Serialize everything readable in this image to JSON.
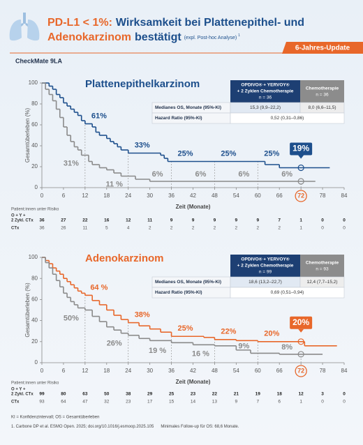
{
  "header": {
    "title_1a": "PD-L1 < 1%:",
    "title_1b": "Wirksamkeit bei Plattenepithel- und",
    "title_2a": "Adenokarzinom",
    "title_2b": "bestätigt",
    "note": "(expl. Post-hoc Analyse)",
    "note_ref": "1",
    "badge": "6-Jahres-Update",
    "study": "CheckMate 9LA"
  },
  "footer": {
    "abbreviations": "KI = Konfidenzintervall; OS = Gesamtüberleben",
    "reference": "1. Carbone DP et al. ESMO Open. 2025; doi.org/10.1016/j.esmoop.2025.105",
    "follow_up": "Minimales Follow-up für OS: 68,6 Monate."
  },
  "chart_data": [
    {
      "type": "step",
      "title": "Plattenepithelkarzinom",
      "title_color": "#1d4f8c",
      "ylabel": "Gesamtüberleben (%)",
      "xlabel": "Zeit (Monate)",
      "xlim": [
        0,
        84
      ],
      "ylim": [
        0,
        100
      ],
      "xticks": [
        0,
        6,
        12,
        18,
        24,
        30,
        36,
        42,
        48,
        54,
        60,
        66,
        72,
        78,
        84
      ],
      "yticks": [
        0,
        20,
        40,
        60,
        80,
        100
      ],
      "highlight_x": 72,
      "series": [
        {
          "color": "#1d4f8c",
          "label_side": "right",
          "x": [
            0,
            2,
            3,
            4,
            5,
            6,
            7,
            8,
            9,
            10,
            11,
            12,
            14,
            15,
            16,
            18,
            19,
            20,
            21,
            22,
            24,
            33,
            34,
            35,
            62,
            66,
            80
          ],
          "values": [
            100,
            97,
            94,
            89,
            86,
            81,
            78,
            75,
            72,
            69,
            64,
            61,
            58,
            53,
            50,
            47,
            44,
            42,
            39,
            36,
            33,
            31,
            28,
            25,
            22,
            19,
            19
          ],
          "labels": [
            {
              "x": 12,
              "value": 61,
              "label": "61%"
            },
            {
              "x": 24,
              "value": 33,
              "label": "33%"
            },
            {
              "x": 36,
              "value": 25,
              "label": "25%"
            },
            {
              "x": 48,
              "value": 25,
              "label": "25%"
            },
            {
              "x": 60,
              "value": 25,
              "label": "25%"
            }
          ],
          "highlight": {
            "x": 72,
            "value": 19,
            "label": "19%"
          }
        },
        {
          "color": "#8a8a8a",
          "label_side": "left",
          "x": [
            0,
            1,
            2,
            3,
            4,
            5,
            6,
            7,
            8,
            9,
            10,
            11,
            13,
            14,
            16,
            18,
            20,
            22,
            26,
            30,
            76
          ],
          "values": [
            100,
            94,
            89,
            83,
            75,
            67,
            58,
            50,
            44,
            39,
            36,
            31,
            25,
            22,
            19,
            17,
            14,
            11,
            8,
            6,
            6
          ],
          "labels": [
            {
              "x": 12,
              "value": 31,
              "label": "31%"
            },
            {
              "x": 24,
              "value": 11,
              "label": "11 %"
            },
            {
              "x": 36,
              "value": 6,
              "label": "6%"
            },
            {
              "x": 48,
              "value": 6,
              "label": "6%"
            },
            {
              "x": 60,
              "value": 6,
              "label": "6%"
            },
            {
              "x": 72,
              "value": 6,
              "label": "6%"
            }
          ],
          "highlight": {
            "x": 72,
            "value": 6
          }
        }
      ],
      "stats": {
        "headers": [
          [
            "OPDIVO® + YERVOY®",
            "+ 2 Zyklen Chemotherapie",
            "n = 36"
          ],
          [
            "Chemotherapie",
            "n = 36"
          ]
        ],
        "rows": [
          [
            "Medianes OS, Monate (95%-KI)",
            "15,3 (9,9–22,2)",
            "8,0 (6,6–11,5)"
          ],
          [
            "Hazard Ratio (95%-KI)",
            "0,52 (0,31–0,86)"
          ]
        ]
      },
      "at_risk": {
        "title": "Patient:innen unter Risiko",
        "rows": [
          {
            "label": [
              "O + Y +",
              "2 Zykl. CTx"
            ],
            "counts": [
              36,
              27,
              22,
              16,
              12,
              11,
              9,
              9,
              9,
              9,
              9,
              7,
              1,
              0,
              0
            ]
          },
          {
            "label": [
              "CTx"
            ],
            "counts": [
              36,
              26,
              11,
              5,
              4,
              2,
              2,
              2,
              2,
              2,
              2,
              2,
              1,
              0,
              0
            ]
          }
        ]
      }
    },
    {
      "type": "step",
      "title": "Adenokarzinom",
      "title_color": "#e8672a",
      "ylabel": "Gesamtüberleben (%)",
      "xlabel": "Zeit (Monate)",
      "xlim": [
        0,
        84
      ],
      "ylim": [
        0,
        100
      ],
      "xticks": [
        0,
        6,
        12,
        18,
        24,
        30,
        36,
        42,
        48,
        54,
        60,
        66,
        72,
        78,
        84
      ],
      "yticks": [
        0,
        20,
        40,
        60,
        80,
        100
      ],
      "highlight_x": 72,
      "series": [
        {
          "color": "#e8672a",
          "label_side": "right",
          "x": [
            0,
            1,
            2,
            3,
            4,
            5,
            6,
            7,
            8,
            9,
            10,
            11,
            12,
            14,
            16,
            18,
            20,
            22,
            24,
            27,
            30,
            33,
            36,
            45,
            48,
            54,
            60,
            73,
            82
          ],
          "values": [
            100,
            97,
            94,
            90,
            87,
            84,
            80,
            77,
            74,
            71,
            68,
            66,
            64,
            59,
            55,
            50,
            45,
            41,
            38,
            35,
            32,
            29,
            25,
            24,
            22,
            21,
            20,
            16,
            16
          ],
          "labels": [
            {
              "x": 12,
              "value": 64,
              "label": "64 %"
            },
            {
              "x": 24,
              "value": 38,
              "label": "38%"
            },
            {
              "x": 36,
              "value": 25,
              "label": "25%"
            },
            {
              "x": 48,
              "value": 22,
              "label": "22%"
            },
            {
              "x": 60,
              "value": 20,
              "label": "20%"
            }
          ],
          "highlight": {
            "x": 72,
            "value": 20,
            "label": "20%"
          }
        },
        {
          "color": "#8a8a8a",
          "label_side": "left",
          "x": [
            0,
            1,
            2,
            3,
            4,
            5,
            6,
            7,
            8,
            9,
            10,
            12,
            14,
            16,
            18,
            20,
            22,
            24,
            27,
            30,
            36,
            42,
            48,
            54,
            58,
            66,
            78
          ],
          "values": [
            100,
            95,
            90,
            84,
            78,
            72,
            66,
            62,
            58,
            55,
            52,
            50,
            44,
            39,
            34,
            31,
            28,
            26,
            23,
            21,
            19,
            17,
            16,
            12,
            9,
            8,
            8
          ],
          "labels": [
            {
              "x": 12,
              "value": 50,
              "label": "50%"
            },
            {
              "x": 24,
              "value": 26,
              "label": "26%"
            },
            {
              "x": 36,
              "value": 19,
              "label": "19 %"
            },
            {
              "x": 48,
              "value": 16,
              "label": "16 %"
            },
            {
              "x": 60,
              "value": 9,
              "label": "9%"
            },
            {
              "x": 72,
              "value": 8,
              "label": "8%"
            }
          ],
          "highlight": {
            "x": 72,
            "value": 8
          }
        }
      ],
      "stats": {
        "headers": [
          [
            "OPDIVO® + YERVOY®",
            "+ 2 Zyklen Chemotherapie",
            "n = 99"
          ],
          [
            "Chemotherapie",
            "n = 93"
          ]
        ],
        "rows": [
          [
            "Medianes OS, Monate (95%-KI)",
            "18,6 (13,2–22,7)",
            "12,4 (7,7–15,2)"
          ],
          [
            "Hazard Ratio (95%-KI)",
            "0,69 (0,51–0,94)"
          ]
        ]
      },
      "at_risk": {
        "title": "Patient:innen unter Risiko",
        "rows": [
          {
            "label": [
              "O + Y +",
              "2 Zykl. CTx"
            ],
            "counts": [
              99,
              80,
              63,
              50,
              38,
              29,
              25,
              23,
              22,
              21,
              19,
              18,
              12,
              3,
              0
            ]
          },
          {
            "label": [
              "CTx"
            ],
            "counts": [
              93,
              64,
              47,
              32,
              23,
              17,
              15,
              14,
              13,
              9,
              7,
              6,
              1,
              0,
              0
            ]
          }
        ]
      }
    }
  ]
}
